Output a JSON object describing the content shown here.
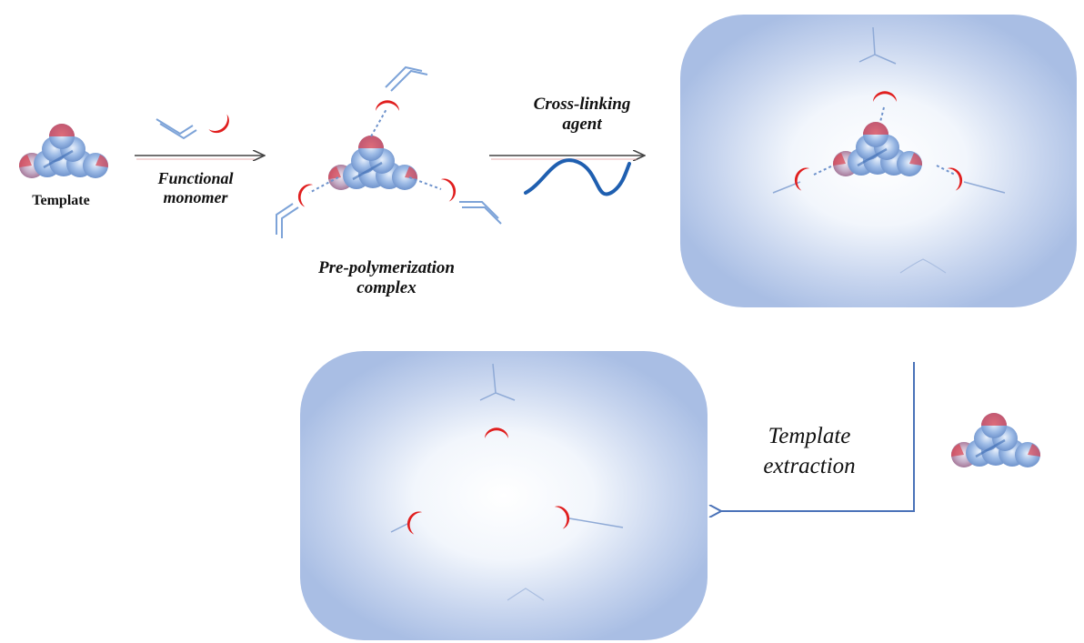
{
  "labels": {
    "template": "Template",
    "functional_monomer_line1": "Functional",
    "functional_monomer_line2": "monomer",
    "pre_polymerization_line1": "Pre-polymerization",
    "pre_polymerization_line2": "complex",
    "cross_linking_line1": "Cross-linking",
    "cross_linking_line2": "agent",
    "template_extraction_line1": "Template",
    "template_extraction_line2": "extraction"
  },
  "colors": {
    "template_sphere": "#7fa7dc",
    "binding_site": "#e02020",
    "polymer_matrix": "#b7c9ea",
    "cross_linker": "#1f5fb0",
    "arrow": "#444444",
    "extraction_arrow": "#4a72b8"
  }
}
